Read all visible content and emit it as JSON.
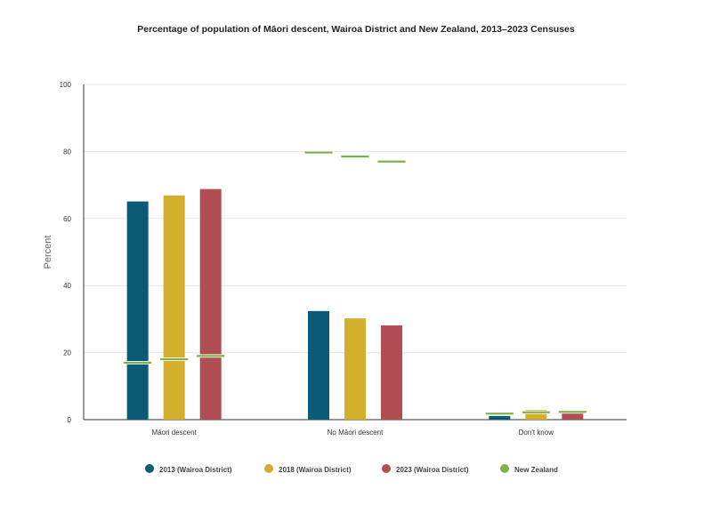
{
  "chart_data": {
    "type": "bar",
    "title": "Percentage of population of Māori descent, Wairoa District and New Zealand, 2013–2023 Censuses",
    "ylabel": "Percent",
    "xlabel": "",
    "ylim": [
      0,
      100
    ],
    "yticks": [
      0,
      20,
      40,
      60,
      80,
      100
    ],
    "grid": true,
    "legend_position": "bottom",
    "categories": [
      "Māori descent",
      "No Māori descent",
      "Don't know"
    ],
    "series": [
      {
        "name": "2013 (Wairoa District)",
        "color": "#0b5a78",
        "values": [
          65.1,
          32.4,
          1.1
        ]
      },
      {
        "name": "2018 (Wairoa District)",
        "color": "#d4af2e",
        "values": [
          66.9,
          30.2,
          2.9
        ]
      },
      {
        "name": "2023 (Wairoa District)",
        "color": "#b04e54",
        "values": [
          68.8,
          28.1,
          2.0
        ]
      }
    ],
    "reference_series": {
      "name": "New Zealand",
      "color": "#7fb04a",
      "values": [
        [
          17.0,
          18.0,
          19.0
        ],
        [
          79.7,
          78.5,
          77.0
        ],
        [
          1.8,
          2.2,
          2.3
        ]
      ]
    }
  }
}
